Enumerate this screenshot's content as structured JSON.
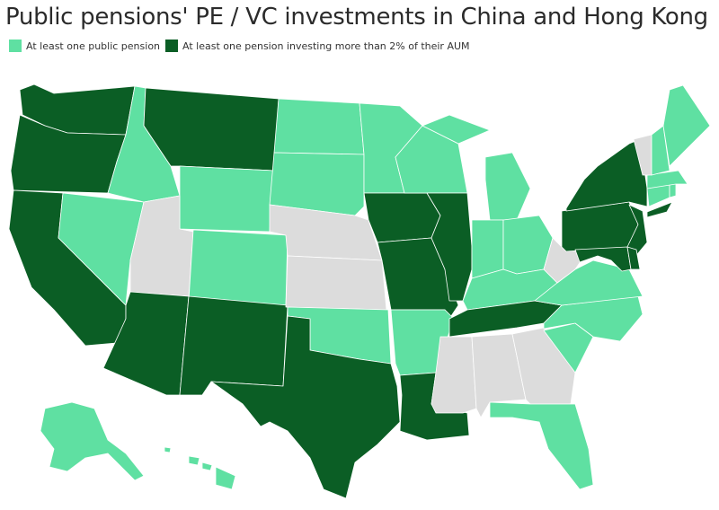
{
  "title": "Public pensions' PE / VC investments in China and Hong Kong",
  "legend": [
    {
      "label": "At least one public pension",
      "color": "#5fe0a2"
    },
    {
      "label": "At least one pension investing more than 2% of their AUM",
      "color": "#0b5e25"
    }
  ],
  "no_data_color": "#dcdcdc",
  "categories": {
    "light": [
      "ID",
      "NV",
      "WY",
      "CO",
      "ND",
      "SD",
      "MN",
      "WI",
      "MI",
      "IN",
      "OH",
      "KY",
      "OK",
      "AR",
      "VA",
      "NC",
      "SC",
      "FL",
      "ME",
      "NH",
      "MA",
      "RI",
      "CT",
      "AK",
      "HI"
    ],
    "dark": [
      "WA",
      "OR",
      "CA",
      "MT",
      "AZ",
      "NM",
      "TX",
      "IA",
      "MO",
      "IL",
      "LA",
      "TN",
      "NY",
      "PA",
      "NJ",
      "MD",
      "DE"
    ],
    "none": [
      "UT",
      "NE",
      "KS",
      "WV",
      "MS",
      "AL",
      "GA",
      "VT"
    ]
  }
}
